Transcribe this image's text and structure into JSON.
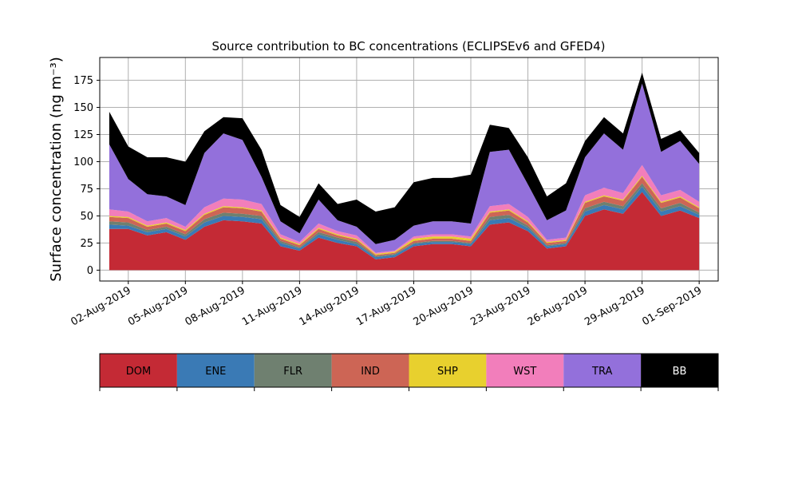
{
  "chart_data": {
    "type": "area",
    "stacked": true,
    "title": "Source contribution to BC concentrations (ECLIPSEv6 and GFED4)",
    "ylabel": "Surface concentration (ng m⁻³)",
    "xlabel": "",
    "ylim": [
      -10,
      196
    ],
    "yticks": [
      0,
      25,
      50,
      75,
      100,
      125,
      150,
      175
    ],
    "xlim": [
      "2019-07-31T12:00",
      "2019-09-02T00:00"
    ],
    "xticks": [
      "02-Aug-2019",
      "05-Aug-2019",
      "08-Aug-2019",
      "11-Aug-2019",
      "14-Aug-2019",
      "17-Aug-2019",
      "20-Aug-2019",
      "23-Aug-2019",
      "26-Aug-2019",
      "29-Aug-2019",
      "01-Sep-2019"
    ],
    "xtick_dates": [
      "2019-08-02",
      "2019-08-05",
      "2019-08-08",
      "2019-08-11",
      "2019-08-14",
      "2019-08-17",
      "2019-08-20",
      "2019-08-23",
      "2019-08-26",
      "2019-08-29",
      "2019-09-01"
    ],
    "grid": true,
    "legend_placement": "below",
    "dates": [
      "2019-08-01",
      "2019-08-02",
      "2019-08-03",
      "2019-08-04",
      "2019-08-05",
      "2019-08-06",
      "2019-08-07",
      "2019-08-08",
      "2019-08-09",
      "2019-08-10",
      "2019-08-11",
      "2019-08-12",
      "2019-08-13",
      "2019-08-14",
      "2019-08-15",
      "2019-08-16",
      "2019-08-17",
      "2019-08-18",
      "2019-08-19",
      "2019-08-20",
      "2019-08-21",
      "2019-08-22",
      "2019-08-23",
      "2019-08-24",
      "2019-08-25",
      "2019-08-26",
      "2019-08-27",
      "2019-08-28",
      "2019-08-29",
      "2019-08-30",
      "2019-08-31",
      "2019-09-01"
    ],
    "series": [
      {
        "name": "DOM",
        "color": "#c42a35",
        "values": [
          38,
          38,
          32,
          35,
          28,
          40,
          46,
          45,
          43,
          22,
          18,
          30,
          25,
          22,
          10,
          12,
          22,
          24,
          24,
          22,
          42,
          44,
          36,
          20,
          22,
          50,
          56,
          52,
          72,
          50,
          55,
          48
        ]
      },
      {
        "name": "ENE",
        "color": "#3a7ab5",
        "values": [
          4,
          3,
          3,
          3,
          3,
          4,
          4,
          4,
          4,
          3,
          2,
          3,
          3,
          2,
          2,
          2,
          2,
          2,
          2,
          2,
          4,
          4,
          3,
          2,
          2,
          4,
          4,
          4,
          5,
          4,
          4,
          3
        ]
      },
      {
        "name": "FLR",
        "color": "#6f8070",
        "values": [
          3,
          3,
          2,
          2,
          2,
          3,
          3,
          3,
          3,
          2,
          1,
          2,
          2,
          2,
          1,
          1,
          1,
          1,
          1,
          1,
          3,
          3,
          2,
          1,
          1,
          3,
          3,
          3,
          3,
          3,
          3,
          2
        ]
      },
      {
        "name": "IND",
        "color": "#cd6555",
        "values": [
          4,
          4,
          3,
          3,
          3,
          4,
          5,
          5,
          4,
          2,
          2,
          3,
          2,
          2,
          1,
          1,
          2,
          2,
          2,
          2,
          4,
          4,
          3,
          2,
          2,
          5,
          5,
          5,
          6,
          5,
          5,
          4
        ]
      },
      {
        "name": "SHP",
        "color": "#e8d02e",
        "values": [
          1,
          1,
          1,
          1,
          1,
          1,
          1,
          1,
          1,
          1,
          1,
          1,
          1,
          1,
          1,
          1,
          2,
          2,
          2,
          2,
          1,
          1,
          1,
          1,
          1,
          1,
          1,
          1,
          1,
          1,
          1,
          1
        ]
      },
      {
        "name": "WST",
        "color": "#f27ebb",
        "values": [
          6,
          5,
          4,
          4,
          3,
          6,
          7,
          7,
          6,
          3,
          2,
          4,
          3,
          3,
          1,
          1,
          2,
          2,
          2,
          2,
          5,
          5,
          4,
          2,
          2,
          6,
          7,
          6,
          10,
          6,
          6,
          5
        ]
      },
      {
        "name": "TRA",
        "color": "#9370db",
        "values": [
          60,
          30,
          25,
          20,
          20,
          50,
          60,
          55,
          25,
          12,
          8,
          22,
          10,
          8,
          8,
          10,
          10,
          12,
          12,
          12,
          50,
          50,
          30,
          18,
          25,
          35,
          50,
          40,
          75,
          40,
          45,
          35
        ]
      },
      {
        "name": "BB",
        "color": "#000000",
        "values": [
          30,
          30,
          34,
          36,
          40,
          20,
          15,
          20,
          25,
          15,
          15,
          15,
          15,
          25,
          30,
          30,
          40,
          40,
          40,
          45,
          25,
          20,
          25,
          22,
          25,
          15,
          15,
          15,
          10,
          12,
          10,
          10
        ]
      }
    ]
  }
}
